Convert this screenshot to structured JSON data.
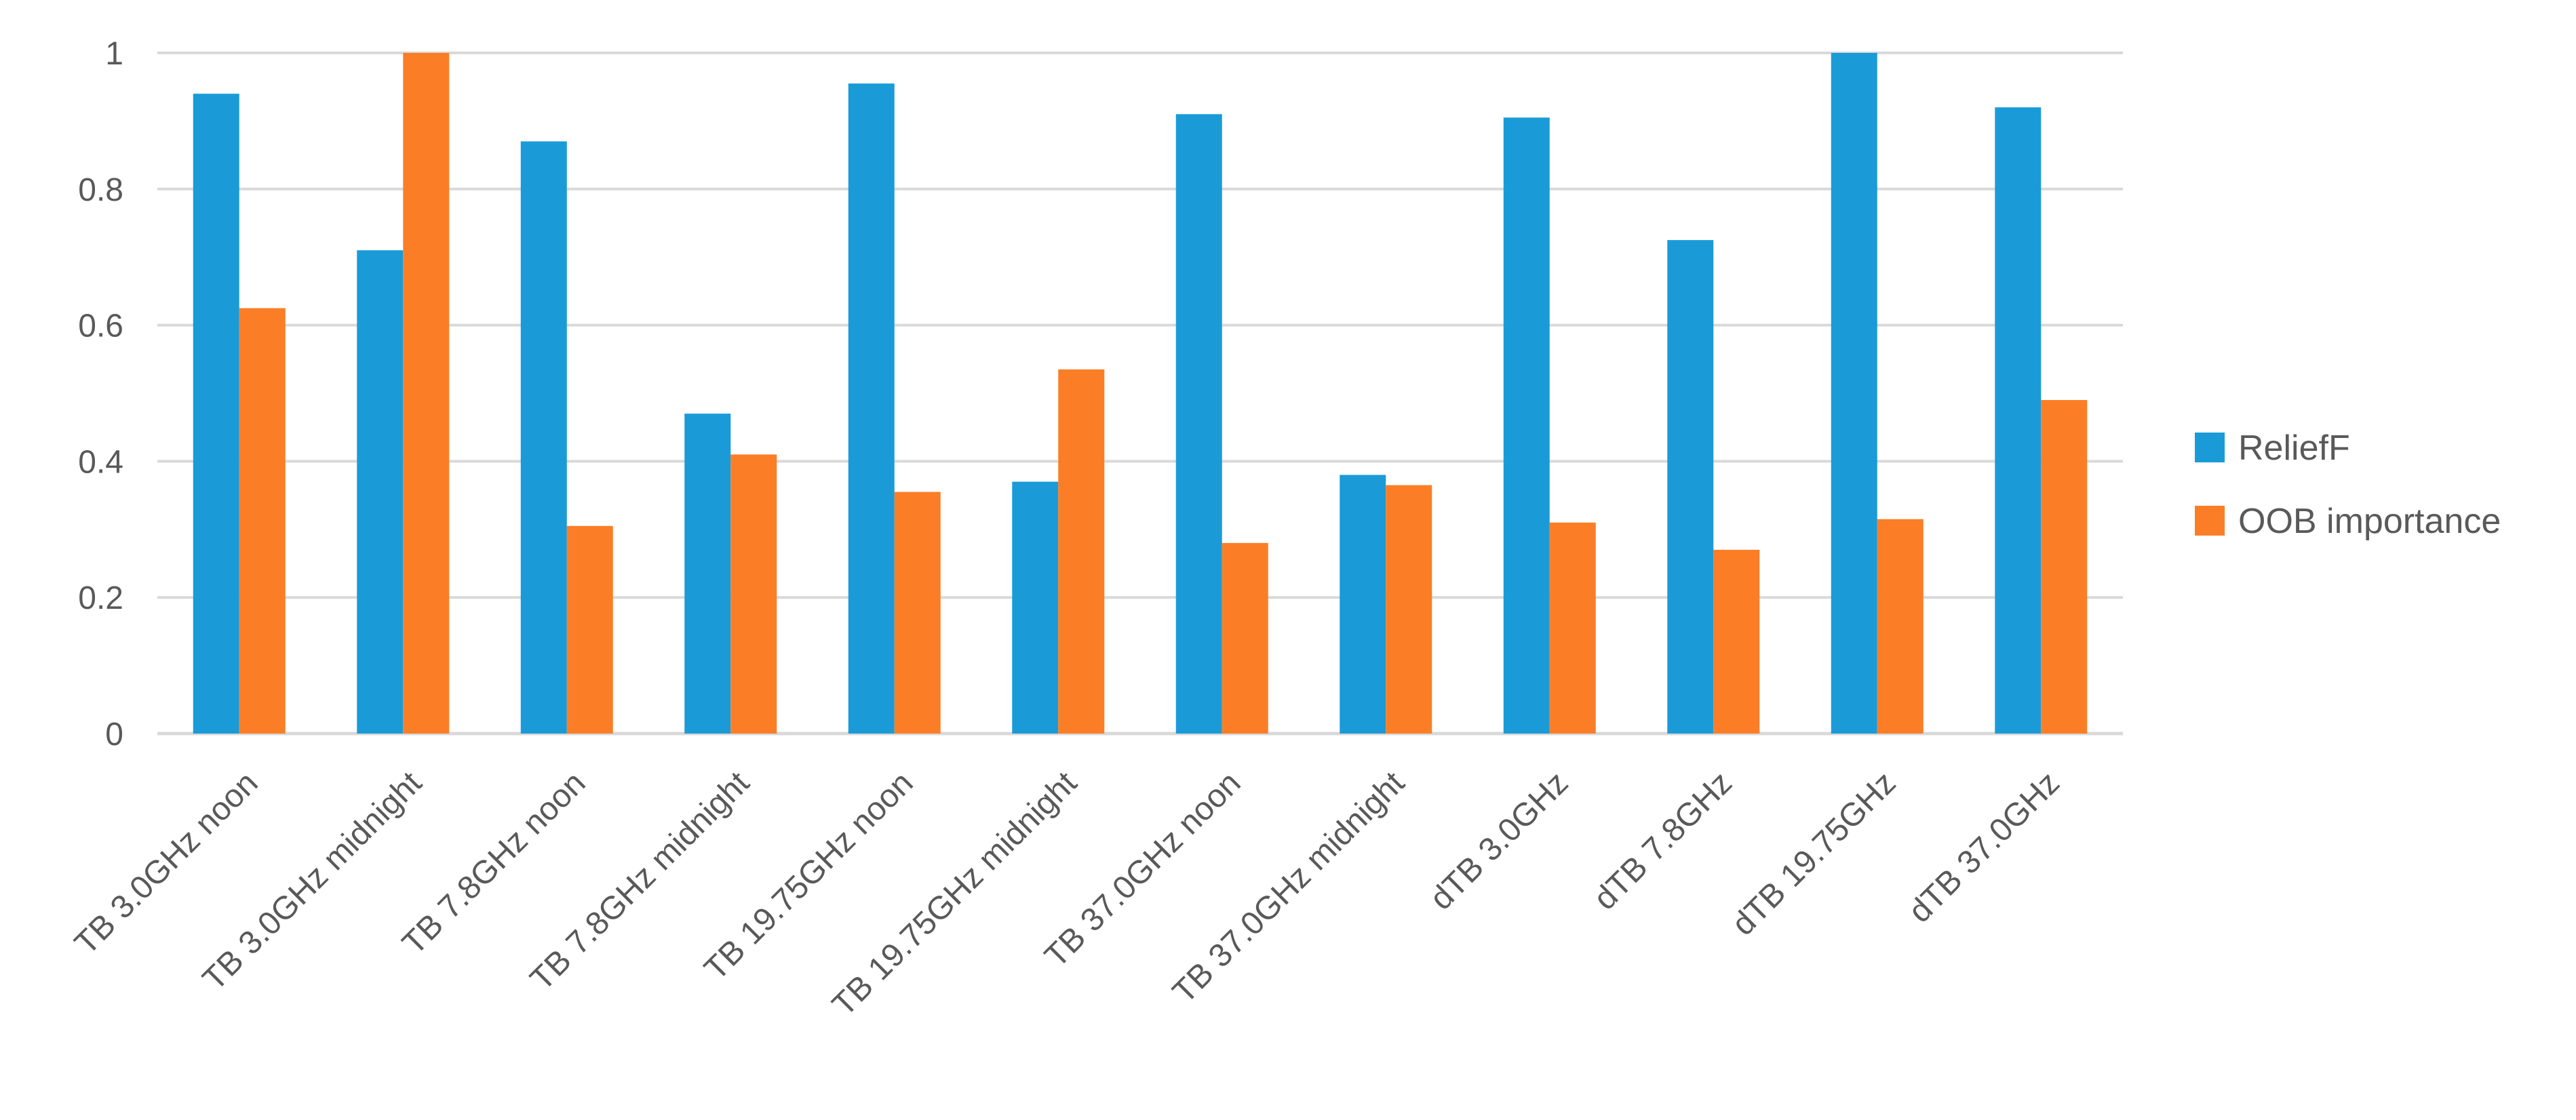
{
  "chart_data": {
    "type": "bar",
    "title": "",
    "xlabel": "",
    "ylabel": "",
    "ylim": [
      0,
      1
    ],
    "yticks": [
      0,
      0.2,
      0.4,
      0.6,
      0.8,
      1
    ],
    "ytick_labels": [
      "0",
      "0.2",
      "0.4",
      "0.6",
      "0.8",
      "1"
    ],
    "grid": true,
    "legend_position": "right",
    "categories": [
      "TB 3.0GHz noon",
      "TB 3.0GHz midnight",
      "TB 7.8GHz noon",
      "TB 7.8GHz midnight",
      "TB 19.75GHz noon",
      "TB 19.75GHz midnight",
      "TB 37.0GHz noon",
      "TB 37.0GHz midnight",
      "dTB 3.0GHz",
      "dTB 7.8GHz",
      "dTB 19.75GHz",
      "dTB 37.0GHz"
    ],
    "series": [
      {
        "name": "ReliefF",
        "color": "#1a9bd7",
        "values": [
          0.94,
          0.71,
          0.87,
          0.47,
          0.955,
          0.37,
          0.91,
          0.38,
          0.905,
          0.725,
          1.0,
          0.92
        ]
      },
      {
        "name": "OOB importance",
        "color": "#fb7e27",
        "values": [
          0.625,
          1.0,
          0.305,
          0.41,
          0.355,
          0.535,
          0.28,
          0.365,
          0.31,
          0.27,
          0.315,
          0.49
        ]
      }
    ]
  }
}
